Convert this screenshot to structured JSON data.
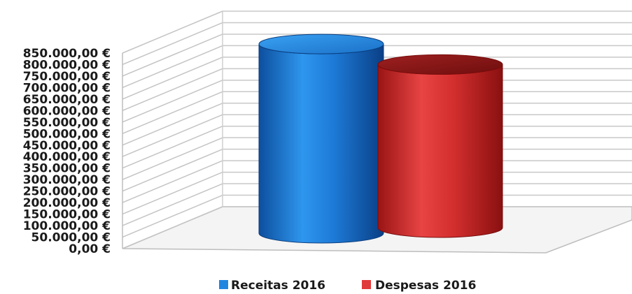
{
  "chart_data": {
    "type": "bar",
    "categories": [
      "Receitas 2016",
      "Despesas 2016"
    ],
    "values": [
      835000,
      720000
    ],
    "ylim": [
      0,
      850000
    ],
    "yticks": [
      "0,00 €",
      "50.000,00 €",
      "100.000,00 €",
      "150.000,00 €",
      "200.000,00 €",
      "250.000,00 €",
      "300.000,00 €",
      "350.000,00 €",
      "400.000,00 €",
      "450.000,00 €",
      "500.000,00 €",
      "550.000,00 €",
      "600.000,00 €",
      "650.000,00 €",
      "700.000,00 €",
      "750.000,00 €",
      "800.000,00 €",
      "850.000,00 €"
    ],
    "grid": true,
    "legend": "bottom",
    "style": "3d-cylinder",
    "colors": [
      "#1f86e0",
      "#e03a3a"
    ]
  }
}
